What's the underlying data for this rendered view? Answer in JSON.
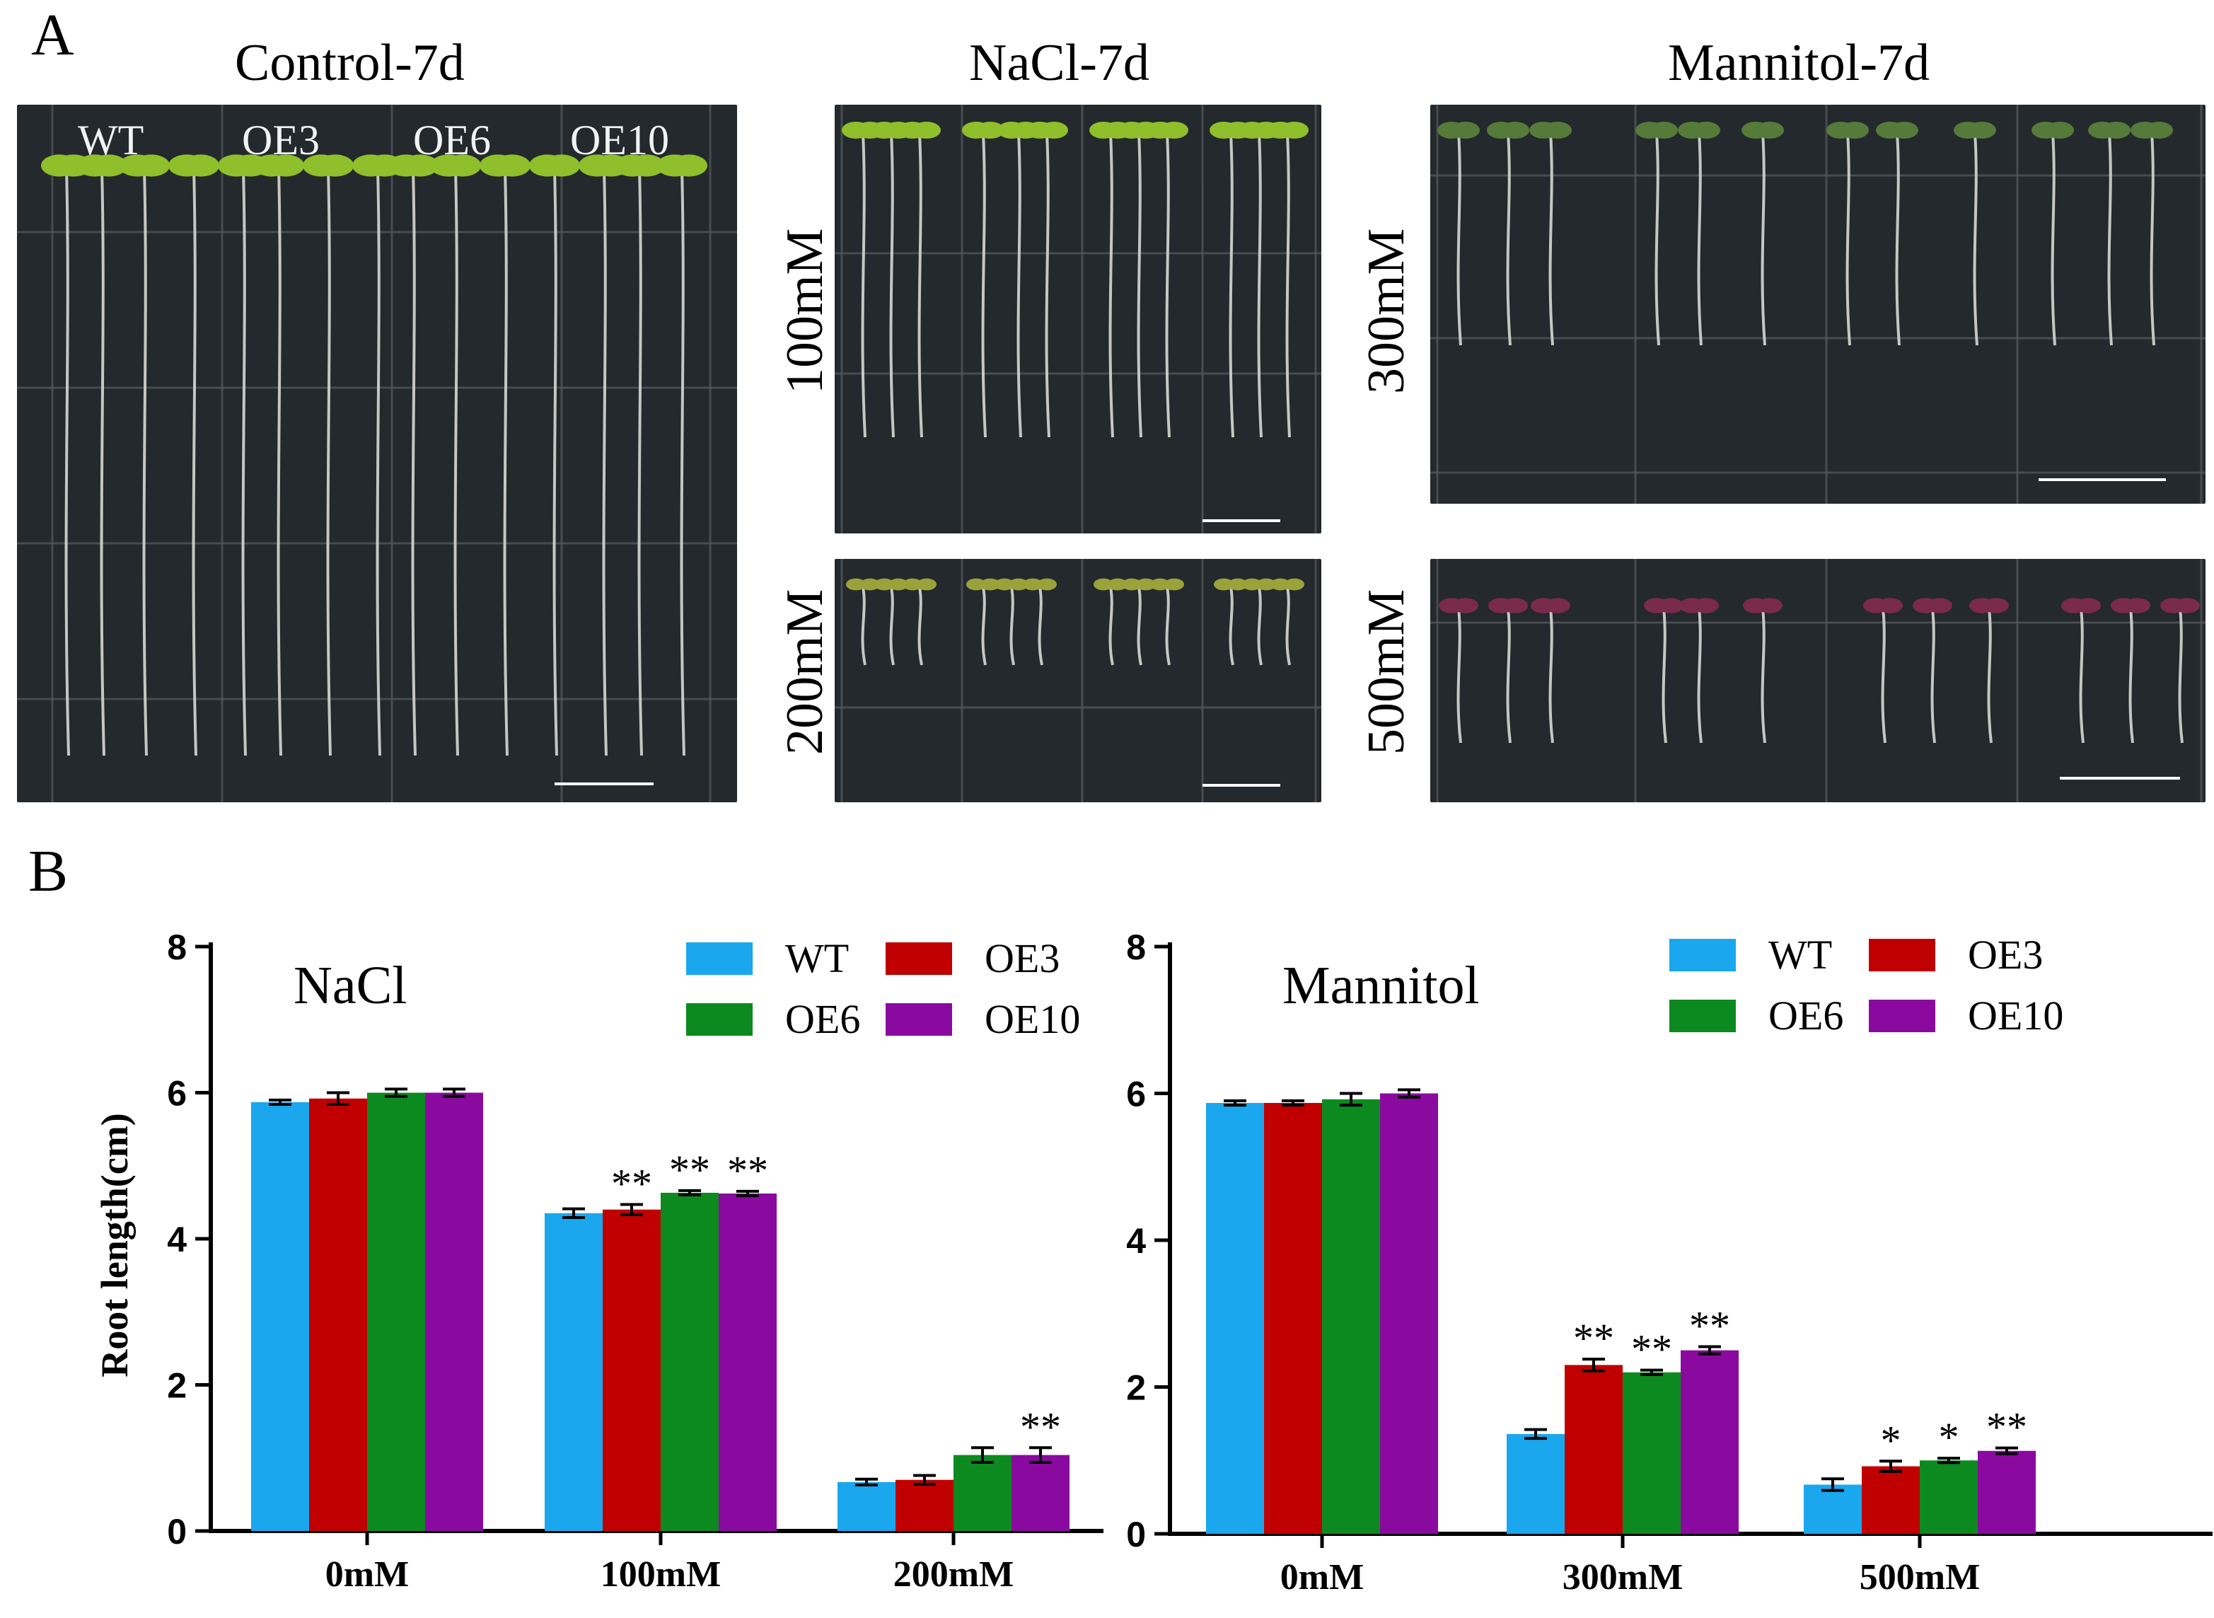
{
  "figure": {
    "panel_a_letter": "A",
    "panel_b_letter": "B",
    "photos": {
      "control": {
        "title": "Control-7d",
        "genotypes": [
          "WT",
          "OE3",
          "OE6",
          "OE10"
        ]
      },
      "nacl": {
        "title": "NaCl-7d",
        "concentrations": [
          "100mM",
          "200mM"
        ]
      },
      "mannitol": {
        "title": "Mannitol-7d",
        "concentrations": [
          "300mM",
          "500mM"
        ]
      }
    }
  },
  "colors": {
    "WT": "#1aa7ee",
    "OE3": "#c00000",
    "OE6": "#0d8a1f",
    "OE10": "#8a0aa0",
    "photo_bg": "#23292d",
    "grid": "#555b5e",
    "root": "#d8d8d0",
    "leaf": "#8fbf2a"
  },
  "chart_data": [
    {
      "type": "bar",
      "title": "NaCl",
      "ylabel": "Root length(cm)",
      "xlabel": "",
      "ylim": [
        0,
        8
      ],
      "yticks": [
        "0",
        "2",
        "4",
        "6",
        "8"
      ],
      "categories": [
        "0mM",
        "100mM",
        "200mM"
      ],
      "legend": [
        "WT",
        "OE3",
        "OE6",
        "OE10"
      ],
      "series": [
        {
          "name": "WT",
          "values": [
            5.87,
            4.35,
            0.67
          ],
          "errors": [
            0.03,
            0.06,
            0.04
          ],
          "sig": [
            "",
            "",
            ""
          ]
        },
        {
          "name": "OE3",
          "values": [
            5.92,
            4.4,
            0.7
          ],
          "errors": [
            0.08,
            0.07,
            0.06
          ],
          "sig": [
            "",
            "**",
            ""
          ]
        },
        {
          "name": "OE6",
          "values": [
            6.0,
            4.63,
            1.04
          ],
          "errors": [
            0.05,
            0.03,
            0.1
          ],
          "sig": [
            "",
            "**",
            ""
          ]
        },
        {
          "name": "OE10",
          "values": [
            6.0,
            4.62,
            1.04
          ],
          "errors": [
            0.05,
            0.03,
            0.1
          ],
          "sig": [
            "",
            "**",
            "**"
          ]
        }
      ]
    },
    {
      "type": "bar",
      "title": "Mannitol",
      "ylabel": "",
      "xlabel": "",
      "ylim": [
        0,
        8
      ],
      "yticks": [
        "0",
        "2",
        "4",
        "6",
        "8"
      ],
      "categories": [
        "0mM",
        "300mM",
        "500mM"
      ],
      "legend": [
        "WT",
        "OE3",
        "OE6",
        "OE10"
      ],
      "series": [
        {
          "name": "WT",
          "values": [
            5.87,
            1.36,
            0.67
          ],
          "errors": [
            0.03,
            0.06,
            0.08
          ],
          "sig": [
            "",
            "",
            ""
          ]
        },
        {
          "name": "OE3",
          "values": [
            5.87,
            2.3,
            0.92
          ],
          "errors": [
            0.03,
            0.08,
            0.07
          ],
          "sig": [
            "",
            "**",
            "*"
          ]
        },
        {
          "name": "OE6",
          "values": [
            5.92,
            2.2,
            1.0
          ],
          "errors": [
            0.08,
            0.03,
            0.03
          ],
          "sig": [
            "",
            "**",
            "*"
          ]
        },
        {
          "name": "OE10",
          "values": [
            6.0,
            2.5,
            1.13
          ],
          "errors": [
            0.05,
            0.05,
            0.04
          ],
          "sig": [
            "",
            "**",
            "**"
          ]
        }
      ]
    }
  ]
}
